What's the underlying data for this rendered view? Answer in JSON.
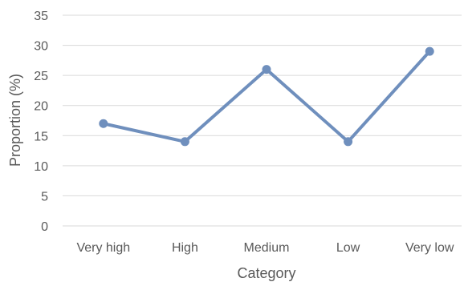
{
  "chart_data": {
    "type": "line",
    "title": "",
    "xlabel": "Category",
    "ylabel": "Proportion (%)",
    "categories": [
      "Very high",
      "High",
      "Medium",
      "Low",
      "Very low"
    ],
    "series": [
      {
        "values": [
          17,
          14,
          26,
          14,
          29
        ],
        "color": "#6f8fbd"
      }
    ],
    "ylim": [
      0,
      35
    ],
    "yticks": [
      "0",
      "5",
      "10",
      "15",
      "20",
      "25",
      "30",
      "35"
    ],
    "grid": true,
    "legend": "none",
    "colors": {
      "grid": "#d9d9d9",
      "text": "#595959"
    }
  }
}
